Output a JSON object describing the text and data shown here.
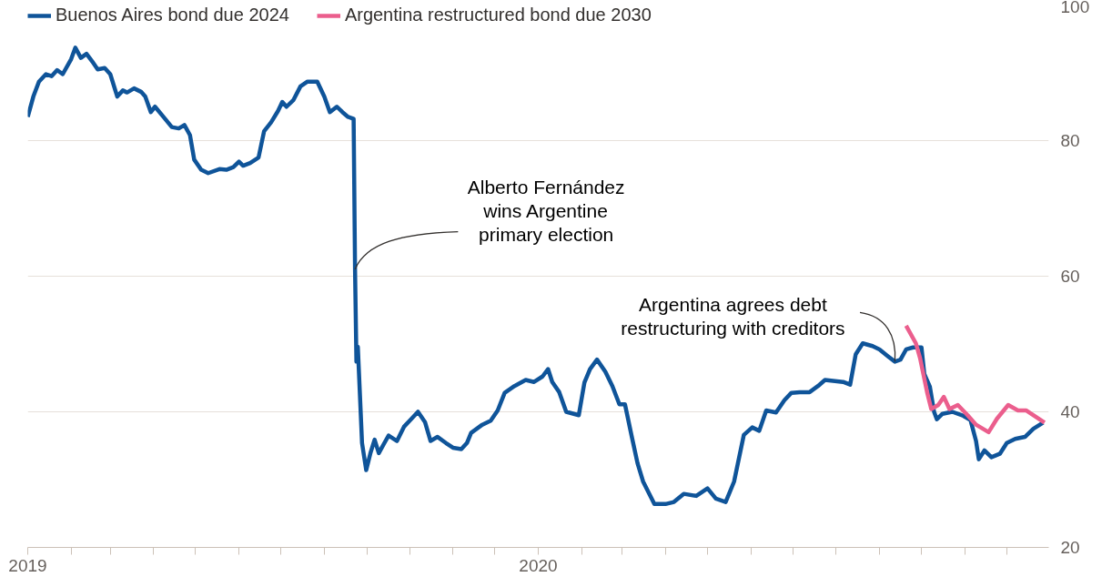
{
  "chart_data": {
    "type": "line",
    "xlim": [
      "2019-01-01",
      "2020-12-31"
    ],
    "ylim": [
      20,
      100
    ],
    "xticks": [
      {
        "value": "2019-01-01",
        "label": "2019"
      },
      {
        "value": "2019-02-01",
        "label": null
      },
      {
        "value": "2019-03-01",
        "label": null
      },
      {
        "value": "2019-04-01",
        "label": null
      },
      {
        "value": "2019-05-01",
        "label": null
      },
      {
        "value": "2019-06-01",
        "label": null
      },
      {
        "value": "2019-07-01",
        "label": null
      },
      {
        "value": "2019-08-01",
        "label": null
      },
      {
        "value": "2019-09-01",
        "label": null
      },
      {
        "value": "2019-10-01",
        "label": null
      },
      {
        "value": "2019-11-01",
        "label": null
      },
      {
        "value": "2019-12-01",
        "label": null
      },
      {
        "value": "2020-01-01",
        "label": "2020"
      },
      {
        "value": "2020-02-01",
        "label": null
      },
      {
        "value": "2020-03-01",
        "label": null
      },
      {
        "value": "2020-04-01",
        "label": null
      },
      {
        "value": "2020-05-01",
        "label": null
      },
      {
        "value": "2020-06-01",
        "label": null
      },
      {
        "value": "2020-07-01",
        "label": null
      },
      {
        "value": "2020-08-01",
        "label": null
      },
      {
        "value": "2020-09-01",
        "label": null
      },
      {
        "value": "2020-10-01",
        "label": null
      },
      {
        "value": "2020-11-01",
        "label": null
      },
      {
        "value": "2020-12-01",
        "label": null
      }
    ],
    "yticks": [
      20,
      40,
      60,
      80,
      100
    ],
    "grid": "y",
    "legend": "top left",
    "line_style": "solid",
    "series": [
      {
        "name": "Buenos Aires bond due 2024",
        "color": "#0f5499",
        "x": [
          "2019-01-01",
          "2019-01-05",
          "2019-01-09",
          "2019-01-14",
          "2019-01-18",
          "2019-01-22",
          "2019-01-26",
          "2019-02-01",
          "2019-02-04",
          "2019-02-08",
          "2019-02-12",
          "2019-02-16",
          "2019-02-20",
          "2019-02-25",
          "2019-03-01",
          "2019-03-06",
          "2019-03-10",
          "2019-03-13",
          "2019-03-18",
          "2019-03-23",
          "2019-03-26",
          "2019-03-30",
          "2019-04-02",
          "2019-04-08",
          "2019-04-14",
          "2019-04-19",
          "2019-04-23",
          "2019-04-27",
          "2019-04-30",
          "2019-05-05",
          "2019-05-10",
          "2019-05-18",
          "2019-05-23",
          "2019-05-28",
          "2019-06-01",
          "2019-06-04",
          "2019-06-09",
          "2019-06-15",
          "2019-06-19",
          "2019-06-24",
          "2019-06-29",
          "2019-07-02",
          "2019-07-05",
          "2019-07-10",
          "2019-07-15",
          "2019-07-20",
          "2019-07-27",
          "2019-08-01",
          "2019-08-05",
          "2019-08-10",
          "2019-08-14",
          "2019-08-18",
          "2019-08-22",
          "2019-08-23",
          "2019-08-24",
          "2019-08-25",
          "2019-08-28",
          "2019-08-31",
          "2019-09-03",
          "2019-09-06",
          "2019-09-09",
          "2019-09-13",
          "2019-09-16",
          "2019-09-22",
          "2019-09-27",
          "2019-10-02",
          "2019-10-07",
          "2019-10-12",
          "2019-10-16",
          "2019-10-21",
          "2019-10-27",
          "2019-11-01",
          "2019-11-07",
          "2019-11-11",
          "2019-11-14",
          "2019-11-22",
          "2019-11-28",
          "2019-12-03",
          "2019-12-08",
          "2019-12-15",
          "2019-12-23",
          "2019-12-29",
          "2020-01-04",
          "2020-01-08",
          "2020-01-11",
          "2020-01-16",
          "2020-01-21",
          "2020-01-30",
          "2020-02-03",
          "2020-02-07",
          "2020-02-12",
          "2020-02-18",
          "2020-02-23",
          "2020-02-28",
          "2020-03-03",
          "2020-03-08",
          "2020-03-12",
          "2020-03-16",
          "2020-03-24",
          "2020-04-01",
          "2020-04-07",
          "2020-04-14",
          "2020-04-23",
          "2020-05-01",
          "2020-05-07",
          "2020-05-14",
          "2020-05-20",
          "2020-05-27",
          "2020-06-02",
          "2020-06-07",
          "2020-06-12",
          "2020-06-19",
          "2020-06-25",
          "2020-06-30",
          "2020-07-06",
          "2020-07-13",
          "2020-07-19",
          "2020-07-24",
          "2020-08-06",
          "2020-08-11",
          "2020-08-15",
          "2020-08-20",
          "2020-08-27",
          "2020-09-01",
          "2020-09-07",
          "2020-09-12",
          "2020-09-16",
          "2020-09-20",
          "2020-09-25",
          "2020-10-01",
          "2020-10-03",
          "2020-10-07",
          "2020-10-10",
          "2020-10-12",
          "2020-10-16",
          "2020-10-23",
          "2020-10-31",
          "2020-11-05",
          "2020-11-09",
          "2020-11-11",
          "2020-11-15",
          "2020-11-20",
          "2020-11-26",
          "2020-12-01",
          "2020-12-07",
          "2020-12-14",
          "2020-12-20",
          "2020-12-27"
        ],
        "values": [
          83.5,
          86.5,
          88.7,
          89.8,
          89.5,
          90.4,
          89.8,
          92,
          93.7,
          92.2,
          92.8,
          91.7,
          90.5,
          90.7,
          89.8,
          86.5,
          87.4,
          87.1,
          87.7,
          87.2,
          86.5,
          84.2,
          85,
          83.5,
          82,
          81.8,
          82.3,
          80.8,
          77.2,
          75.7,
          75.2,
          75.8,
          75.7,
          76.1,
          76.9,
          76.3,
          76.7,
          77.5,
          81.4,
          82.7,
          84.4,
          85.7,
          85,
          86,
          88,
          88.7,
          88.7,
          86.5,
          84.2,
          85,
          84.2,
          83.5,
          83.2,
          61,
          47.4,
          49.6,
          35.4,
          31.4,
          33.9,
          35.9,
          33.9,
          35.4,
          36.5,
          35.7,
          37.8,
          38.9,
          40,
          38.5,
          35.7,
          36.3,
          35.4,
          34.7,
          34.5,
          35.4,
          36.9,
          38.1,
          38.7,
          40.2,
          42.8,
          43.8,
          44.7,
          44.4,
          45.2,
          46.3,
          44.4,
          42.9,
          40,
          39.5,
          44.3,
          46.3,
          47.7,
          45.9,
          43.8,
          41.1,
          41.1,
          36.2,
          32.4,
          29.7,
          26.4,
          26.4,
          26.7,
          27.9,
          27.6,
          28.7,
          27.2,
          26.7,
          29.7,
          36.6,
          37.7,
          37.2,
          40.2,
          39.9,
          41.7,
          42.8,
          42.9,
          42.9,
          43.8,
          44.7,
          44.4,
          44,
          48.5,
          50.1,
          49.7,
          49.2,
          48.2,
          47.4,
          47.7,
          49.2,
          49.5,
          49.5,
          45.6,
          43.7,
          40,
          38.9,
          39.7,
          40,
          39.4,
          38.8,
          35.7,
          33,
          34.3,
          33.3,
          33.8,
          35.4,
          36,
          36.3,
          37.5,
          38.4
        ]
      },
      {
        "name": "Argentina restructured bond due 2030",
        "color": "#eb5e8d",
        "x": [
          "2020-09-20",
          "2020-09-27",
          "2020-09-30",
          "2020-10-05",
          "2020-10-08",
          "2020-10-13",
          "2020-10-17",
          "2020-10-21",
          "2020-10-27",
          "2020-11-03",
          "2020-11-09",
          "2020-11-18",
          "2020-11-24",
          "2020-12-02",
          "2020-12-09",
          "2020-12-15",
          "2020-12-28"
        ],
        "values": [
          52.7,
          50.1,
          47.9,
          42.9,
          40.4,
          41,
          42.2,
          40.4,
          41,
          39.5,
          38.1,
          37,
          39,
          41,
          40.2,
          40.2,
          38.4
        ]
      }
    ],
    "annotations": [
      {
        "text": "Alberto Fernández\nwins Argentine\nprimary election",
        "x": "2019-08-23",
        "y": 61
      },
      {
        "text": "Argentina agrees debt\nrestructuring with creditors",
        "x": "2020-09-12",
        "y": 47.4
      }
    ]
  }
}
